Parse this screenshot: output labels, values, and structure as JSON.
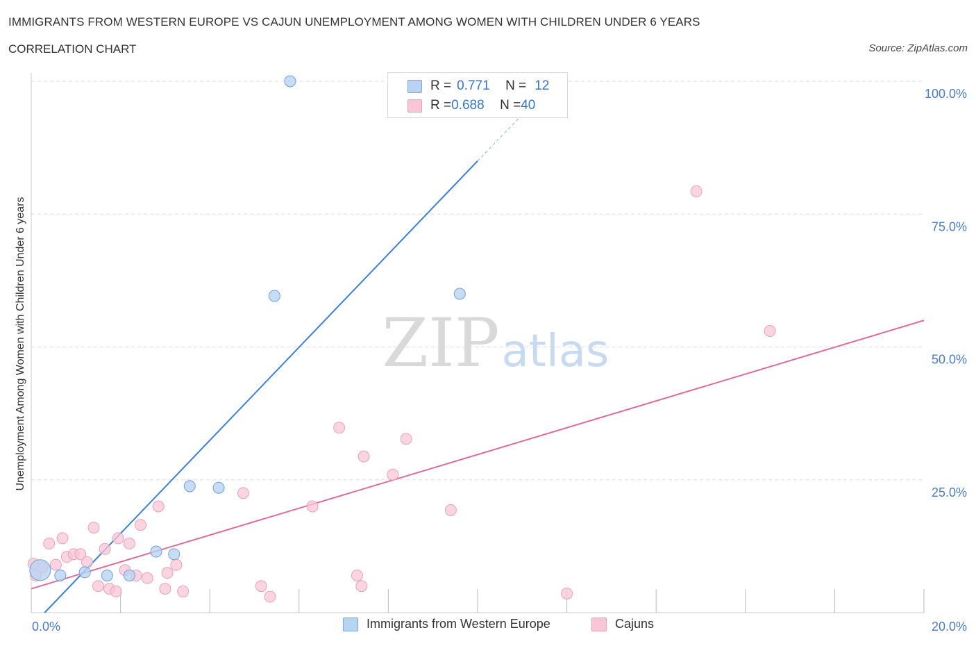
{
  "title": "IMMIGRANTS FROM WESTERN EUROPE VS CAJUN UNEMPLOYMENT AMONG WOMEN WITH CHILDREN UNDER 6 YEARS",
  "subtitle": "CORRELATION CHART",
  "source": "Source: ZipAtlas.com",
  "watermark": {
    "zip": "ZIP",
    "atlas": "atlas"
  },
  "legend": {
    "series1": {
      "r_label": "R = ",
      "r_value": "0.771",
      "n_label": "N = ",
      "n_value": "12"
    },
    "series2": {
      "r_label": "R = ",
      "r_value": "0.688",
      "n_label": "N = ",
      "n_value": "40"
    }
  },
  "colors": {
    "blue": "#3d7fd6",
    "blue_fill": "#b9d3f3",
    "pink": "#e06c96",
    "pink_fill": "#f8c6d6",
    "axis_label": "#4a7cc4",
    "grid": "#dddddd"
  },
  "chart_data": {
    "type": "scatter",
    "title": "IMMIGRANTS FROM WESTERN EUROPE VS CAJUN UNEMPLOYMENT AMONG WOMEN WITH CHILDREN UNDER 6 YEARS",
    "xlabel": "",
    "ylabel": "Unemployment Among Women with Children Under 6 years",
    "xlim": [
      0,
      20
    ],
    "ylim": [
      0,
      100
    ],
    "x_tick_labels": [
      "0.0%",
      "20.0%"
    ],
    "y_tick_values": [
      25,
      50,
      75,
      100
    ],
    "y_tick_labels": [
      "25.0%",
      "50.0%",
      "75.0%",
      "100.0%"
    ],
    "legend_position": "top-center",
    "series": [
      {
        "name": "Immigrants from Western Europe",
        "color": "#3d7fd6",
        "R": 0.771,
        "N": 12,
        "points": [
          {
            "x": 0.2,
            "y": 8.0,
            "big": true
          },
          {
            "x": 0.65,
            "y": 7.0
          },
          {
            "x": 1.2,
            "y": 7.6
          },
          {
            "x": 1.7,
            "y": 7.0
          },
          {
            "x": 2.2,
            "y": 7.0
          },
          {
            "x": 2.8,
            "y": 11.5
          },
          {
            "x": 3.2,
            "y": 11.0
          },
          {
            "x": 3.55,
            "y": 23.8
          },
          {
            "x": 4.2,
            "y": 23.5
          },
          {
            "x": 5.45,
            "y": 59.6
          },
          {
            "x": 5.8,
            "y": 100.0
          },
          {
            "x": 9.6,
            "y": 60.0
          }
        ],
        "trend": {
          "x0": 0.3,
          "y0": 0.0,
          "x1": 10.0,
          "y1": 85.0,
          "dash_x1": 11.1,
          "dash_y1": 94.6
        }
      },
      {
        "name": "Cajuns",
        "color": "#e06c96",
        "R": 0.688,
        "N": 40,
        "points": [
          {
            "x": 0.1,
            "y": 7.0
          },
          {
            "x": 0.25,
            "y": 8.5
          },
          {
            "x": 0.4,
            "y": 13.0
          },
          {
            "x": 0.55,
            "y": 9.0
          },
          {
            "x": 0.7,
            "y": 14.0
          },
          {
            "x": 0.8,
            "y": 10.5
          },
          {
            "x": 0.95,
            "y": 11.0
          },
          {
            "x": 1.1,
            "y": 11.0
          },
          {
            "x": 1.25,
            "y": 9.5
          },
          {
            "x": 1.4,
            "y": 16.0
          },
          {
            "x": 1.5,
            "y": 5.0
          },
          {
            "x": 1.65,
            "y": 12.0
          },
          {
            "x": 1.75,
            "y": 4.5
          },
          {
            "x": 1.9,
            "y": 4.0
          },
          {
            "x": 1.95,
            "y": 14.0
          },
          {
            "x": 2.1,
            "y": 8.0
          },
          {
            "x": 2.2,
            "y": 13.0
          },
          {
            "x": 2.35,
            "y": 7.0
          },
          {
            "x": 2.45,
            "y": 16.5
          },
          {
            "x": 2.6,
            "y": 6.5
          },
          {
            "x": 2.85,
            "y": 20.0
          },
          {
            "x": 3.0,
            "y": 4.5
          },
          {
            "x": 3.05,
            "y": 7.5
          },
          {
            "x": 3.25,
            "y": 9.0
          },
          {
            "x": 3.4,
            "y": 4.0
          },
          {
            "x": 4.75,
            "y": 22.5
          },
          {
            "x": 5.15,
            "y": 5.0
          },
          {
            "x": 5.35,
            "y": 3.0
          },
          {
            "x": 6.3,
            "y": 20.0
          },
          {
            "x": 6.9,
            "y": 34.8
          },
          {
            "x": 7.3,
            "y": 7.0
          },
          {
            "x": 7.45,
            "y": 29.4
          },
          {
            "x": 7.4,
            "y": 5.0
          },
          {
            "x": 8.1,
            "y": 26.0
          },
          {
            "x": 8.4,
            "y": 32.7
          },
          {
            "x": 9.4,
            "y": 19.3
          },
          {
            "x": 12.0,
            "y": 3.6
          },
          {
            "x": 14.9,
            "y": 79.3
          },
          {
            "x": 16.55,
            "y": 53.0
          },
          {
            "x": 0.05,
            "y": 9.2
          }
        ],
        "trend": {
          "x0": 0.0,
          "y0": 4.5,
          "x1": 20.0,
          "y1": 55.0
        }
      }
    ]
  },
  "bottom_legend": [
    {
      "label": "Immigrants from Western Europe"
    },
    {
      "label": "Cajuns"
    }
  ]
}
